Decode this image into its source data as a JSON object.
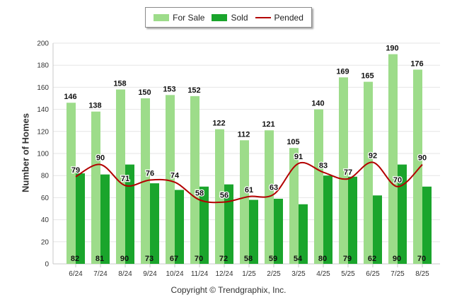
{
  "colors": {
    "for_sale": "#9ddc8a",
    "sold": "#1aa52c",
    "pended": "#b30000",
    "grid": "#e6e6e6"
  },
  "legend": {
    "for_sale": "For Sale",
    "sold": "Sold",
    "pended": "Pended"
  },
  "copyright": "Copyright © Trendgraphix, Inc.",
  "chart_data": {
    "type": "bar",
    "title": "",
    "xlabel": "",
    "ylabel": "Number of Homes",
    "ylim": [
      0,
      200
    ],
    "yticks": [
      0,
      20,
      40,
      60,
      80,
      100,
      120,
      140,
      160,
      180,
      200
    ],
    "grid": true,
    "legend_position": "top",
    "categories": [
      "6/24",
      "7/24",
      "8/24",
      "9/24",
      "10/24",
      "11/24",
      "12/24",
      "1/25",
      "2/25",
      "3/25",
      "4/25",
      "5/25",
      "6/25",
      "7/25",
      "8/25"
    ],
    "series": [
      {
        "name": "For Sale",
        "kind": "bar",
        "values": [
          146,
          138,
          158,
          150,
          153,
          152,
          122,
          112,
          121,
          105,
          140,
          169,
          165,
          190,
          176
        ]
      },
      {
        "name": "Sold",
        "kind": "bar",
        "values": [
          82,
          81,
          90,
          73,
          67,
          70,
          72,
          58,
          59,
          54,
          80,
          79,
          62,
          90,
          70
        ]
      },
      {
        "name": "Pended",
        "kind": "line",
        "values": [
          79,
          90,
          71,
          76,
          74,
          58,
          56,
          61,
          63,
          91,
          83,
          77,
          92,
          70,
          90
        ]
      }
    ]
  }
}
